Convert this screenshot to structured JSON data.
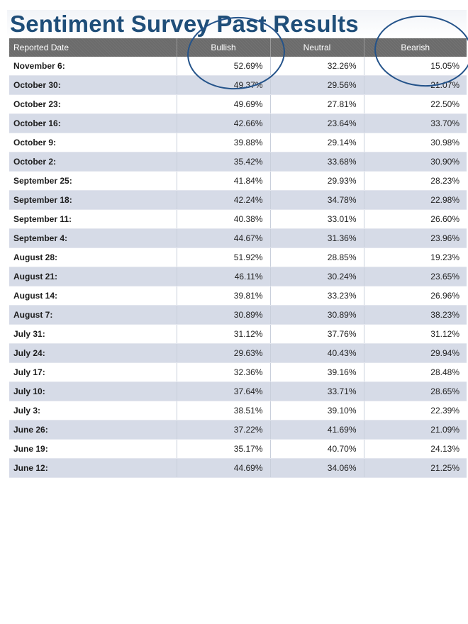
{
  "title": "Sentiment Survey Past Results",
  "table": {
    "headers": [
      "Reported Date",
      "Bullish",
      "Neutral",
      "Bearish"
    ],
    "rows": [
      [
        "November 6:",
        "52.69%",
        "32.26%",
        "15.05%"
      ],
      [
        "October 30:",
        "49.37%",
        "29.56%",
        "21.07%"
      ],
      [
        "October 23:",
        "49.69%",
        "27.81%",
        "22.50%"
      ],
      [
        "October 16:",
        "42.66%",
        "23.64%",
        "33.70%"
      ],
      [
        "October 9:",
        "39.88%",
        "29.14%",
        "30.98%"
      ],
      [
        "October 2:",
        "35.42%",
        "33.68%",
        "30.90%"
      ],
      [
        "September 25:",
        "41.84%",
        "29.93%",
        "28.23%"
      ],
      [
        "September 18:",
        "42.24%",
        "34.78%",
        "22.98%"
      ],
      [
        "September 11:",
        "40.38%",
        "33.01%",
        "26.60%"
      ],
      [
        "September 4:",
        "44.67%",
        "31.36%",
        "23.96%"
      ],
      [
        "August 28:",
        "51.92%",
        "28.85%",
        "19.23%"
      ],
      [
        "August 21:",
        "46.11%",
        "30.24%",
        "23.65%"
      ],
      [
        "August 14:",
        "39.81%",
        "33.23%",
        "26.96%"
      ],
      [
        "August 7:",
        "30.89%",
        "30.89%",
        "38.23%"
      ],
      [
        "July 31:",
        "31.12%",
        "37.76%",
        "31.12%"
      ],
      [
        "July 24:",
        "29.63%",
        "40.43%",
        "29.94%"
      ],
      [
        "July 17:",
        "32.36%",
        "39.16%",
        "28.48%"
      ],
      [
        "July 10:",
        "37.64%",
        "33.71%",
        "28.65%"
      ],
      [
        "July 3:",
        "38.51%",
        "39.10%",
        "22.39%"
      ],
      [
        "June 26:",
        "37.22%",
        "41.69%",
        "21.09%"
      ],
      [
        "June 19:",
        "35.17%",
        "40.70%",
        "24.13%"
      ],
      [
        "June 12:",
        "44.69%",
        "34.06%",
        "21.25%"
      ]
    ]
  },
  "colors": {
    "title": "#1f4e79",
    "header_bg": "#6b6b6b",
    "stripe": "#d6dbe7",
    "annotation_circle": "#24538a"
  }
}
